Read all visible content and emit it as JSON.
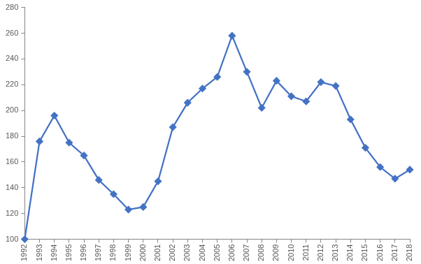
{
  "chart_data": {
    "type": "line",
    "categories": [
      "1992",
      "1993",
      "1994",
      "1995",
      "1996",
      "1997",
      "1998",
      "1999",
      "2000",
      "2001",
      "2002",
      "2003",
      "2004",
      "2005",
      "2006",
      "2007",
      "2008",
      "2009",
      "2010",
      "2011",
      "2012",
      "2013",
      "2014",
      "2015",
      "2016",
      "2017",
      "2018"
    ],
    "values": [
      100,
      176,
      196,
      175,
      165,
      146,
      135,
      123,
      125,
      145,
      187,
      206,
      217,
      226,
      258,
      230,
      202,
      223,
      211,
      207,
      222,
      219,
      193,
      171,
      156,
      147,
      154
    ],
    "color": "#4472c4",
    "marker": "diamond",
    "line_style": "solid",
    "ylim": [
      100,
      280
    ],
    "yticks": [
      100,
      120,
      140,
      160,
      180,
      200,
      220,
      240,
      260,
      280
    ],
    "grid": false
  }
}
